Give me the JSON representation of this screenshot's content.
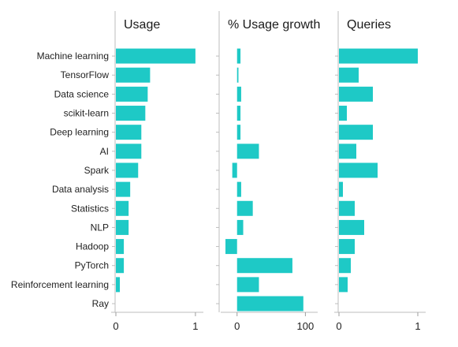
{
  "chart_data": {
    "type": "bar",
    "orientation": "horizontal",
    "categories": [
      "Machine learning",
      "TensorFlow",
      "Data science",
      "scikit-learn",
      "Deep learning",
      "AI",
      "Spark",
      "Data analysis",
      "Statistics",
      "NLP",
      "Hadoop",
      "PyTorch",
      "Reinforcement learning",
      "Ray"
    ],
    "panels": [
      {
        "title": "Usage",
        "xlim": [
          0,
          1.1
        ],
        "ticks": [
          0,
          1
        ],
        "tick_labels": [
          "0",
          "1"
        ],
        "values": [
          1.0,
          0.43,
          0.4,
          0.37,
          0.32,
          0.32,
          0.28,
          0.18,
          0.16,
          0.16,
          0.1,
          0.1,
          0.05,
          0.0
        ]
      },
      {
        "title": "% Usage growth",
        "xlim": [
          -17,
          118
        ],
        "ticks": [
          0,
          100
        ],
        "tick_labels": [
          "0",
          "100"
        ],
        "values": [
          5,
          2,
          6,
          5,
          5,
          32,
          -7,
          6,
          23,
          9,
          -17,
          81,
          32,
          97
        ]
      },
      {
        "title": "Queries",
        "xlim": [
          0,
          1.1
        ],
        "ticks": [
          0,
          1
        ],
        "tick_labels": [
          "0",
          "1"
        ],
        "values": [
          1.0,
          0.25,
          0.43,
          0.1,
          0.43,
          0.22,
          0.49,
          0.05,
          0.2,
          0.32,
          0.2,
          0.15,
          0.11,
          0.0
        ]
      }
    ],
    "bar_color": "#1ec9c6",
    "grid": false,
    "legend": "none"
  }
}
